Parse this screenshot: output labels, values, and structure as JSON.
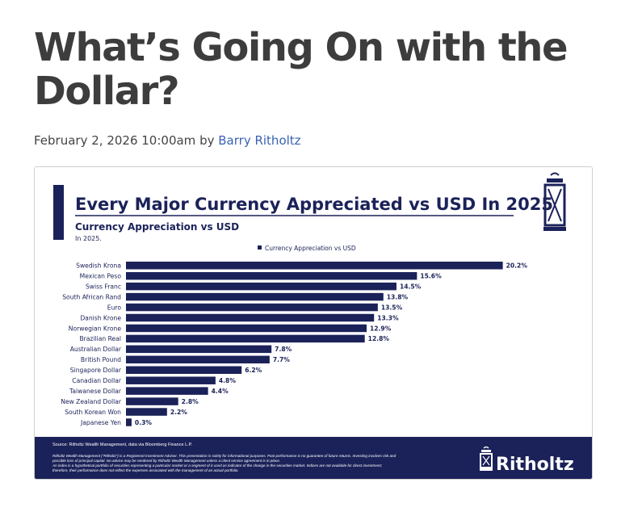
{
  "article": {
    "title": "What’s Going On with the Dollar?",
    "date": "February 2, 2026 10:00am",
    "by": "by",
    "author": "Barry Ritholtz"
  },
  "colors": {
    "navy": "#1b2259",
    "bar": "#1b2259",
    "link": "#3a62b3"
  },
  "chart_data": {
    "type": "bar",
    "orientation": "horizontal",
    "title": "Every Major Currency Appreciated vs USD In 2025",
    "subtitle": "Currency Appreciation vs USD",
    "subtitle2": "In 2025.",
    "legend_position": "top",
    "grid": false,
    "xlim": [
      0,
      21
    ],
    "series": [
      {
        "name": "Currency Appreciation vs USD",
        "color": "#1b2259",
        "categories": [
          "Swedish Krona",
          "Mexican Peso",
          "Swiss Franc",
          "South African Rand",
          "Euro",
          "Danish Krone",
          "Norwegian Krone",
          "Brazilian Real",
          "Australian Dollar",
          "British Pound",
          "Singapore Dollar",
          "Canadian Dollar",
          "Taiwanese Dollar",
          "New Zealand Dollar",
          "South Korean Won",
          "Japanese Yen"
        ],
        "values": [
          20.2,
          15.6,
          14.5,
          13.8,
          13.5,
          13.3,
          12.9,
          12.8,
          7.8,
          7.7,
          6.2,
          4.8,
          4.4,
          2.8,
          2.2,
          0.3
        ],
        "labels": [
          "20.2%",
          "15.6%",
          "14.5%",
          "13.8%",
          "13.5%",
          "13.3%",
          "12.9%",
          "12.8%",
          "7.8%",
          "7.7%",
          "6.2%",
          "4.8%",
          "4.4%",
          "2.8%",
          "2.2%",
          "0.3%"
        ]
      }
    ],
    "source": "Source: Ritholtz Wealth Management, data via Bloomberg Finance L.P.",
    "disclaimer": [
      "Ritholtz Wealth Management (\"Ritholtz\") is a Registered Investment Adviser. This presentation is solely for informational purposes. Past performance is no guarantee of future returns. Investing involves risk and",
      "possible loss of principal capital. No advice may be rendered by Ritholtz Wealth Management unless a client service agreement is in place.",
      "An index is a hypothetical portfolio of securities representing a particular market or a segment of it used as indicator of the change in the securities market. Indices are not available for direct investment;",
      "therefore, their performance does not reflect the expenses associated with the management of an actual portfolio."
    ],
    "brand": "Ritholtz"
  }
}
